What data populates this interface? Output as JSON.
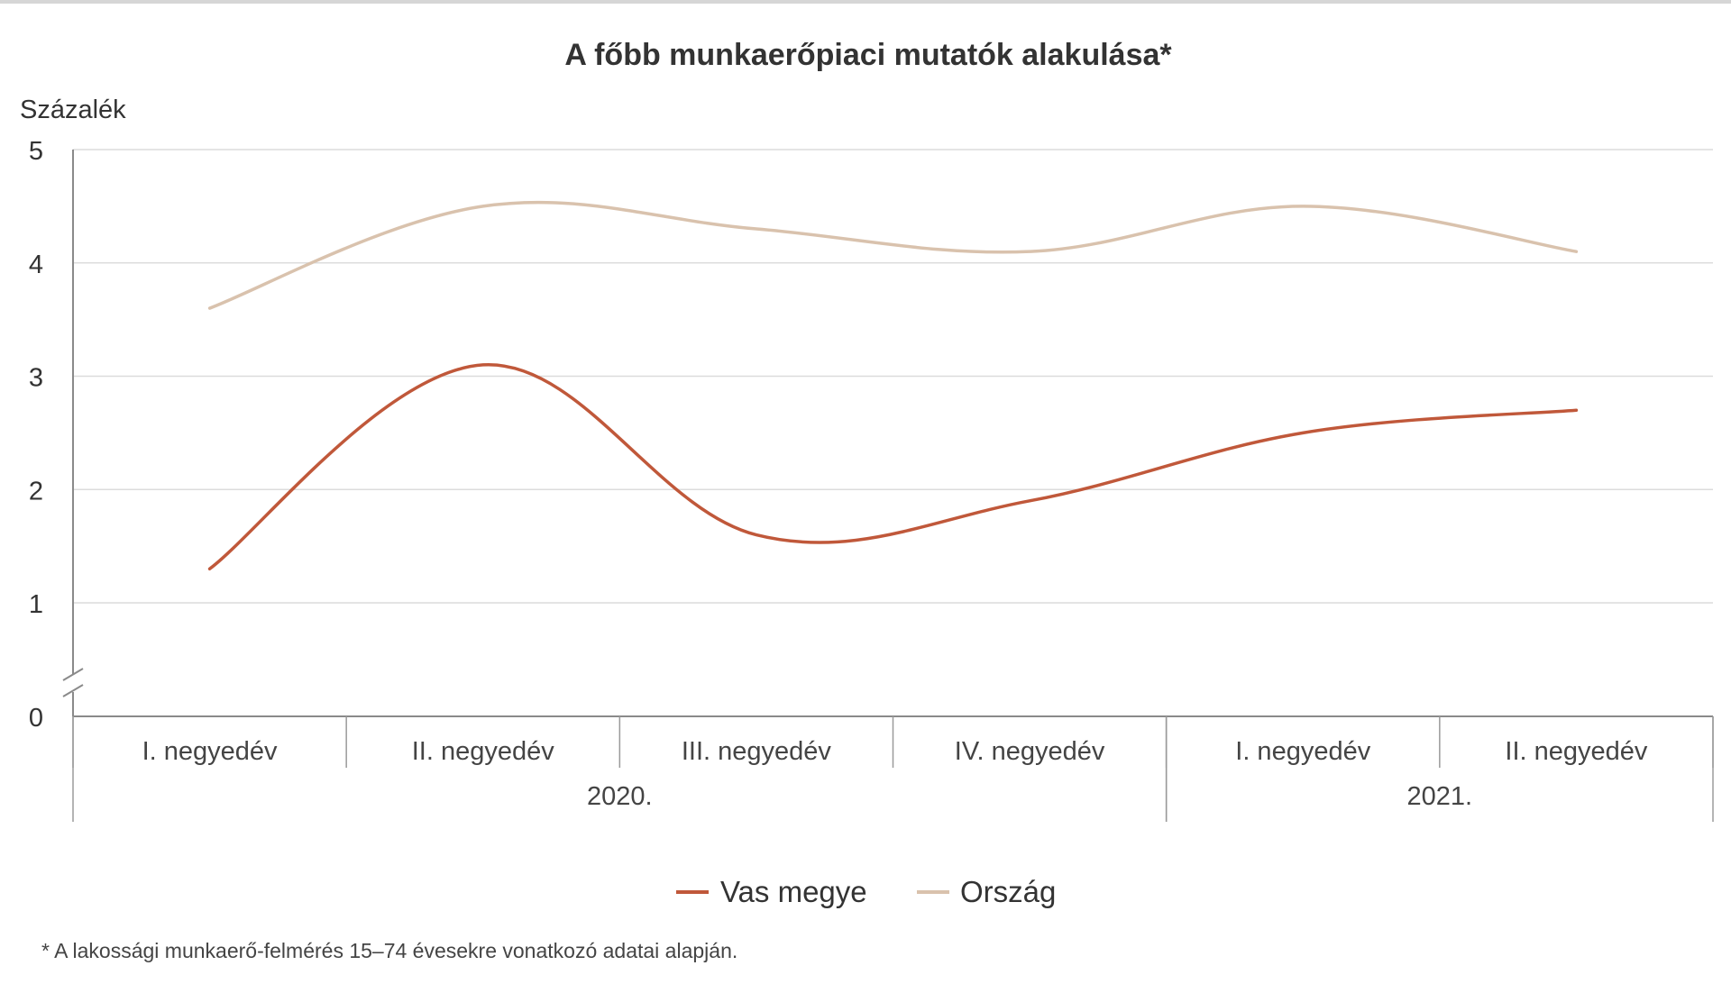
{
  "chart_data": {
    "type": "line",
    "title": "A főbb munkaerőpiaci mutatók alakulása*",
    "ylabel": "Százalék",
    "xlabel": "",
    "ylim": [
      0,
      5
    ],
    "y_ticks": [
      "0",
      "1",
      "2",
      "3",
      "4",
      "5"
    ],
    "y_axis_break": true,
    "grid": true,
    "smooth": true,
    "legend_position": "bottom",
    "categories": [
      "I. negyedév",
      "II. negyedév",
      "III. negyedév",
      "IV. negyedév",
      "I. negyedév",
      "II. negyedév"
    ],
    "year_groups": [
      {
        "label": "2020.",
        "count": 4
      },
      {
        "label": "2021.",
        "count": 2
      }
    ],
    "series": [
      {
        "name": "Vas megye",
        "color": "#c0583a",
        "values": [
          1.3,
          3.1,
          1.6,
          1.9,
          2.5,
          2.7
        ]
      },
      {
        "name": "Ország",
        "color": "#d9c2ad",
        "values": [
          3.6,
          4.5,
          4.3,
          4.1,
          4.5,
          4.1
        ]
      }
    ],
    "footnote": "* A lakossági munkaerő-felmérés 15–74 évesekre vonatkozó adatai alapján."
  }
}
